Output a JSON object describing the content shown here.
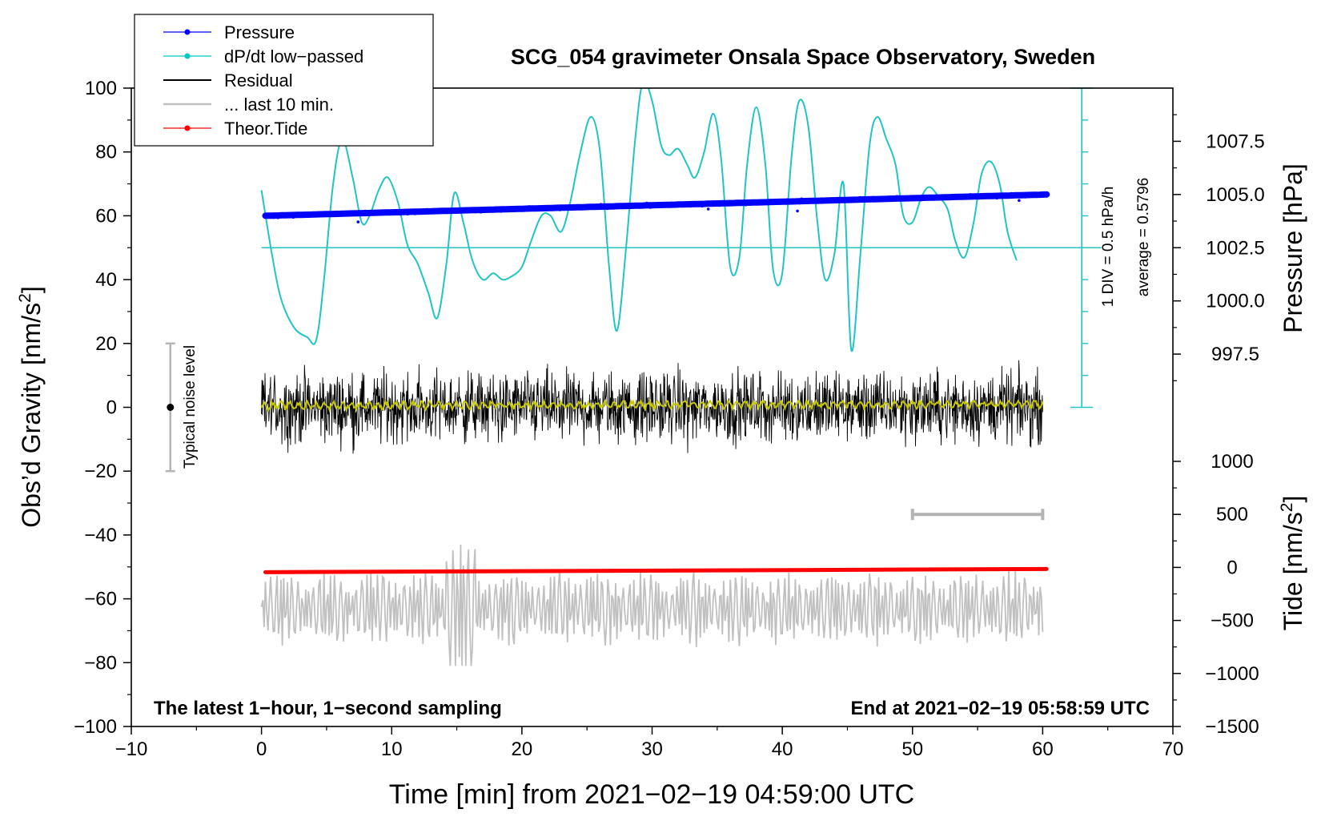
{
  "chart_data": {
    "type": "line",
    "title": "SCG_054 gravimeter Onsala Space Observatory, Sweden",
    "xlabel": "Time [min] from 2021−02−19 04:59:00 UTC",
    "ylabel_left": "Obs’d Gravity [nm/s",
    "ylabel_left_sup": "2",
    "ylabel_left_close": "]",
    "ylabel_right_pressure": "Pressure [hPa]",
    "ylabel_right_tide": "Tide [nm/s",
    "ylabel_right_tide_sup": "2",
    "ylabel_right_tide_close": "]",
    "xlim": [
      -10,
      70
    ],
    "ylim": [
      -100,
      100
    ],
    "x_ticks": [
      "−10",
      "0",
      "10",
      "20",
      "30",
      "40",
      "50",
      "60",
      "70"
    ],
    "x_tick_values": [
      -10,
      0,
      10,
      20,
      30,
      40,
      50,
      60,
      70
    ],
    "y_ticks": [
      "100",
      "80",
      "60",
      "40",
      "20",
      "0",
      "−20",
      "−40",
      "−60",
      "−80",
      "−100"
    ],
    "y_tick_values": [
      100,
      80,
      60,
      40,
      20,
      0,
      -20,
      -40,
      -60,
      -80,
      -100
    ],
    "pressure_axis": {
      "ticks": [
        "1007.5",
        "1005.0",
        "1002.5",
        "1000.0",
        "997.5"
      ],
      "values": [
        1007.5,
        1005.0,
        1002.5,
        1000.0,
        997.5
      ],
      "range_hpa": [
        995.0,
        1010.0
      ]
    },
    "tide_axis": {
      "ticks": [
        "1000",
        "500",
        "0",
        "−500",
        "−1000",
        "−1500"
      ],
      "values": [
        1000,
        500,
        0,
        -500,
        -1000,
        -1500
      ],
      "range_nm_s2": [
        -1500,
        1000
      ]
    },
    "dpdt_scale": {
      "label": "1 DIV = 0.5 hPa/h",
      "average_label": "average = 0.5796",
      "baseline_gravity_units": 50
    },
    "noise_marker": {
      "label": "Typical noise level",
      "x": -7,
      "center": 0,
      "range": [
        -20,
        20
      ]
    },
    "gray_scalebar": {
      "x_range": [
        50,
        60
      ],
      "tide_value": 500
    },
    "legend": [
      {
        "label": "Pressure",
        "color": "#0000ff",
        "marker": true
      },
      {
        "label": "dP/dt low−passed",
        "color": "#00c8c8",
        "marker": true
      },
      {
        "label": "Residual",
        "color": "#000000",
        "marker": false
      },
      {
        "label": "... last 10 min.",
        "color": "#c0c0c0",
        "marker": false
      },
      {
        "label": "Theor.Tide",
        "color": "#ff0000",
        "marker": true
      }
    ],
    "footer_left": "The latest 1−hour, 1−second sampling",
    "footer_right": "End at 2021−02−19 05:58:59 UTC",
    "series": [
      {
        "name": "dP/dt low-passed",
        "color": "#20c4c4",
        "axis": "gravity",
        "x": [
          0.0,
          0.8,
          1.5,
          2.5,
          3.5,
          4.2,
          4.8,
          5.5,
          6.2,
          7.0,
          7.7,
          8.3,
          9.0,
          9.7,
          10.5,
          11.2,
          12.0,
          12.8,
          13.5,
          14.2,
          14.8,
          15.5,
          16.2,
          17.0,
          17.8,
          18.5,
          19.2,
          20.0,
          20.7,
          21.5,
          22.2,
          23.0,
          23.7,
          24.5,
          25.3,
          26.0,
          26.7,
          27.3,
          28.0,
          28.7,
          29.3,
          30.0,
          30.7,
          31.3,
          32.0,
          32.7,
          33.3,
          34.0,
          34.7,
          35.3,
          36.0,
          36.7,
          37.3,
          38.0,
          38.7,
          39.3,
          40.0,
          40.7,
          41.3,
          42.0,
          42.7,
          43.3,
          44.0,
          44.7,
          45.3,
          46.0,
          46.7,
          47.3,
          48.0,
          48.7,
          49.3,
          50.0,
          50.7,
          51.3,
          52.0,
          52.7,
          53.3,
          54.0,
          54.7,
          55.3,
          56.0,
          56.7,
          57.3,
          58.0
        ],
        "values": [
          68,
          48,
          34,
          25,
          22,
          21,
          40,
          70,
          84,
          72,
          58,
          60,
          68,
          72,
          64,
          51,
          45,
          36,
          28,
          45,
          67,
          58,
          46,
          40,
          42,
          40,
          41,
          44,
          52,
          60,
          60,
          55,
          64,
          80,
          91,
          80,
          44,
          24,
          50,
          84,
          102,
          96,
          82,
          79,
          81,
          76,
          72,
          80,
          92,
          78,
          44,
          47,
          76,
          94,
          76,
          43,
          42,
          78,
          96,
          88,
          58,
          40,
          48,
          70,
          18,
          48,
          82,
          91,
          84,
          76,
          60,
          58,
          66,
          69,
          66,
          62,
          52,
          47,
          58,
          73,
          77,
          70,
          55,
          46
        ]
      },
      {
        "name": "Pressure",
        "color": "#0000ff",
        "axis": "pressure",
        "x": [
          0.3,
          60.3
        ],
        "values": [
          1004.0,
          1005.0
        ]
      },
      {
        "name": "Theor.Tide",
        "color": "#ff0000",
        "axis": "tide",
        "x": [
          0.3,
          60.3
        ],
        "values": [
          -45,
          -15
        ]
      },
      {
        "name": "Residual",
        "color": "#000000",
        "axis": "gravity",
        "x_range": [
          0,
          60
        ],
        "envelope": [
          -19,
          20
        ],
        "mean": 0
      },
      {
        "name": "Residual low-passed",
        "color": "#c8c800",
        "axis": "gravity",
        "x_range": [
          0,
          60
        ],
        "envelope": [
          -2,
          2
        ],
        "mean": 0.5
      },
      {
        "name": "... last 10 min.",
        "color": "#c0c0c0",
        "axis": "gravity",
        "x_range": [
          0,
          60
        ],
        "envelope": [
          -81,
          -43
        ],
        "mean": -63
      }
    ]
  }
}
